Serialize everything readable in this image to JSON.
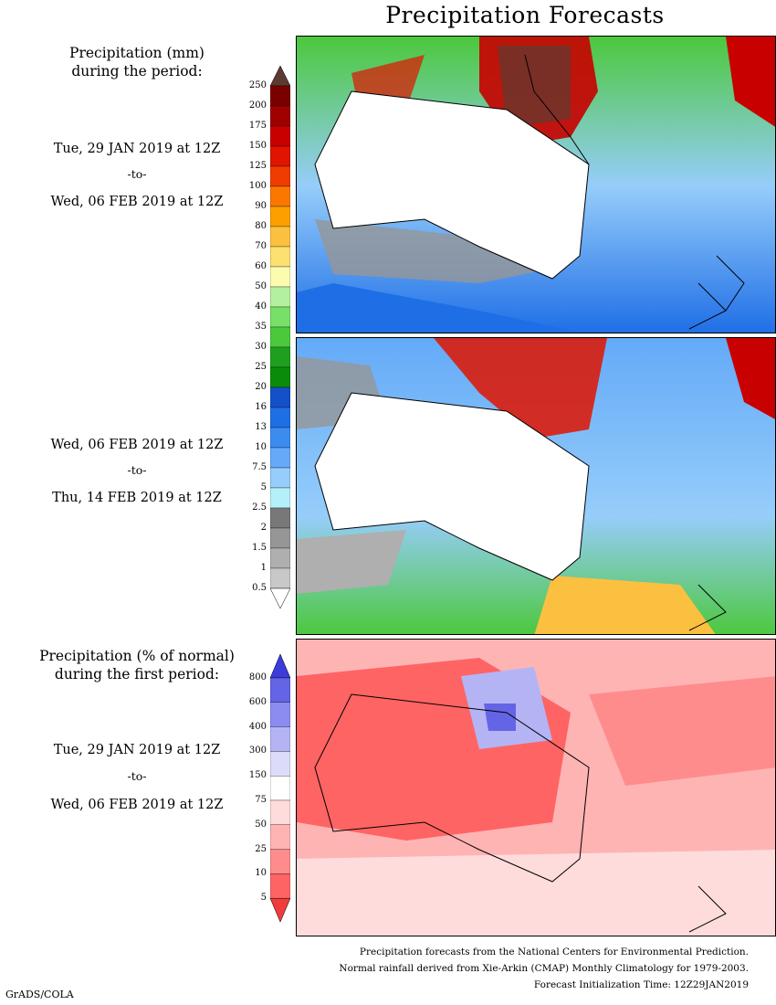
{
  "title": "Precipitation Forecasts",
  "section1": {
    "heading_line1": "Precipitation (mm)",
    "heading_line2": "during the period:",
    "period1": {
      "start": "Tue, 29 JAN 2019 at 12Z",
      "sep": "-to-",
      "end": "Wed, 06 FEB 2019 at 12Z"
    },
    "period2": {
      "start": "Wed, 06 FEB 2019 at 12Z",
      "sep": "-to-",
      "end": "Thu, 14 FEB 2019 at 12Z"
    }
  },
  "section2": {
    "heading_line1": "Precipitation (% of normal)",
    "heading_line2": "during the first period:",
    "period": {
      "start": "Tue, 29 JAN 2019 at 12Z",
      "sep": "-to-",
      "end": "Wed, 06 FEB 2019 at 12Z"
    }
  },
  "colorbar_mm": {
    "labels": [
      "250",
      "200",
      "175",
      "150",
      "125",
      "100",
      "90",
      "80",
      "70",
      "60",
      "50",
      "40",
      "35",
      "30",
      "25",
      "20",
      "16",
      "13",
      "10",
      "7.5",
      "5",
      "2.5",
      "2",
      "1.5",
      "1",
      "0.5"
    ],
    "colors": [
      "#5c3a32",
      "#7a0000",
      "#a00000",
      "#c80000",
      "#e01400",
      "#f03c00",
      "#fa7800",
      "#fca000",
      "#fcc040",
      "#fce070",
      "#fcfcb0",
      "#b4f0a0",
      "#78e068",
      "#4cc83c",
      "#1ea01e",
      "#0a8c0a",
      "#1450c8",
      "#1e6ee6",
      "#3c8cf0",
      "#64aaf8",
      "#96cdfa",
      "#b4f0fa",
      "#787878",
      "#969696",
      "#afafaf",
      "#c8c8c8",
      "#ffffff"
    ]
  },
  "colorbar_pct": {
    "labels": [
      "800",
      "600",
      "400",
      "300",
      "150",
      "75",
      "50",
      "25",
      "10",
      "5"
    ],
    "colors": [
      "#3c3cdc",
      "#6464e6",
      "#8c8cf0",
      "#b4b4f5",
      "#dcdcfa",
      "#ffffff",
      "#ffdcdc",
      "#ffb4b4",
      "#ff8c8c",
      "#ff6464",
      "#f03c3c"
    ]
  },
  "footer": {
    "line1": "Precipitation forecasts from the National Centers for Environmental Prediction.",
    "line2": "Normal rainfall derived from Xie-Arkin (CMAP) Monthly Climatology for 1979-2003.",
    "line3": "Forecast Initialization Time: 12Z29JAN2019"
  },
  "credit": "GrADS/COLA"
}
